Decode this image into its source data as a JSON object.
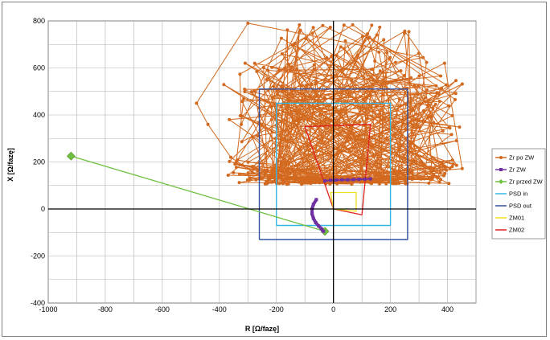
{
  "chart_data": {
    "type": "scatter",
    "xlabel": "R [Ω/fazę]",
    "ylabel": "X [Ω/fazę]",
    "xlim": [
      -1000,
      500
    ],
    "ylim": [
      -400,
      800
    ],
    "x_ticks": [
      -1000,
      -800,
      -600,
      -400,
      -200,
      0,
      200,
      400
    ],
    "y_ticks": [
      -400,
      -200,
      0,
      200,
      400,
      600,
      800
    ],
    "grid": true,
    "legend_position": "right",
    "series": [
      {
        "name": "Zr po ZW",
        "color": "#D2691E",
        "marker": "circle",
        "style": "line-marker",
        "description_generated": true
      },
      {
        "name": "Zr ZW",
        "color": "#7030A0",
        "marker": "square",
        "style": "line-marker",
        "points": [
          [
            -30,
            120
          ],
          [
            -10,
            122
          ],
          [
            10,
            123
          ],
          [
            30,
            124
          ],
          [
            50,
            124
          ],
          [
            70,
            125
          ],
          [
            90,
            126
          ],
          [
            110,
            127
          ],
          [
            130,
            128
          ],
          [
            -60,
            40
          ],
          [
            -70,
            20
          ],
          [
            -75,
            0
          ],
          [
            -75,
            -20
          ],
          [
            -70,
            -40
          ],
          [
            -62,
            -58
          ],
          [
            -52,
            -72
          ],
          [
            -42,
            -84
          ],
          [
            -35,
            -95
          ]
        ]
      },
      {
        "name": "Zr przed ZW",
        "color": "#70C040",
        "marker": "diamond",
        "style": "line-marker",
        "points": [
          [
            -920,
            225
          ],
          [
            -30,
            -95
          ]
        ]
      },
      {
        "name": "PSD in",
        "color": "#33B5E5",
        "style": "line",
        "points": [
          [
            -200,
            -70
          ],
          [
            200,
            -70
          ],
          [
            200,
            450
          ],
          [
            -200,
            450
          ],
          [
            -200,
            -70
          ]
        ]
      },
      {
        "name": "PSD out",
        "color": "#3050A0",
        "style": "line",
        "points": [
          [
            -260,
            -130
          ],
          [
            260,
            -130
          ],
          [
            260,
            510
          ],
          [
            -260,
            510
          ],
          [
            -260,
            -130
          ]
        ]
      },
      {
        "name": "ZM01",
        "color": "#F0E020",
        "style": "line",
        "points": [
          [
            0,
            0
          ],
          [
            -10,
            70
          ],
          [
            80,
            70
          ],
          [
            80,
            -10
          ],
          [
            0,
            0
          ]
        ]
      },
      {
        "name": "ZM02",
        "color": "#E02020",
        "style": "line",
        "points": [
          [
            0,
            0
          ],
          [
            -100,
            350
          ],
          [
            130,
            360
          ],
          [
            100,
            -25
          ],
          [
            0,
            0
          ]
        ]
      }
    ]
  }
}
